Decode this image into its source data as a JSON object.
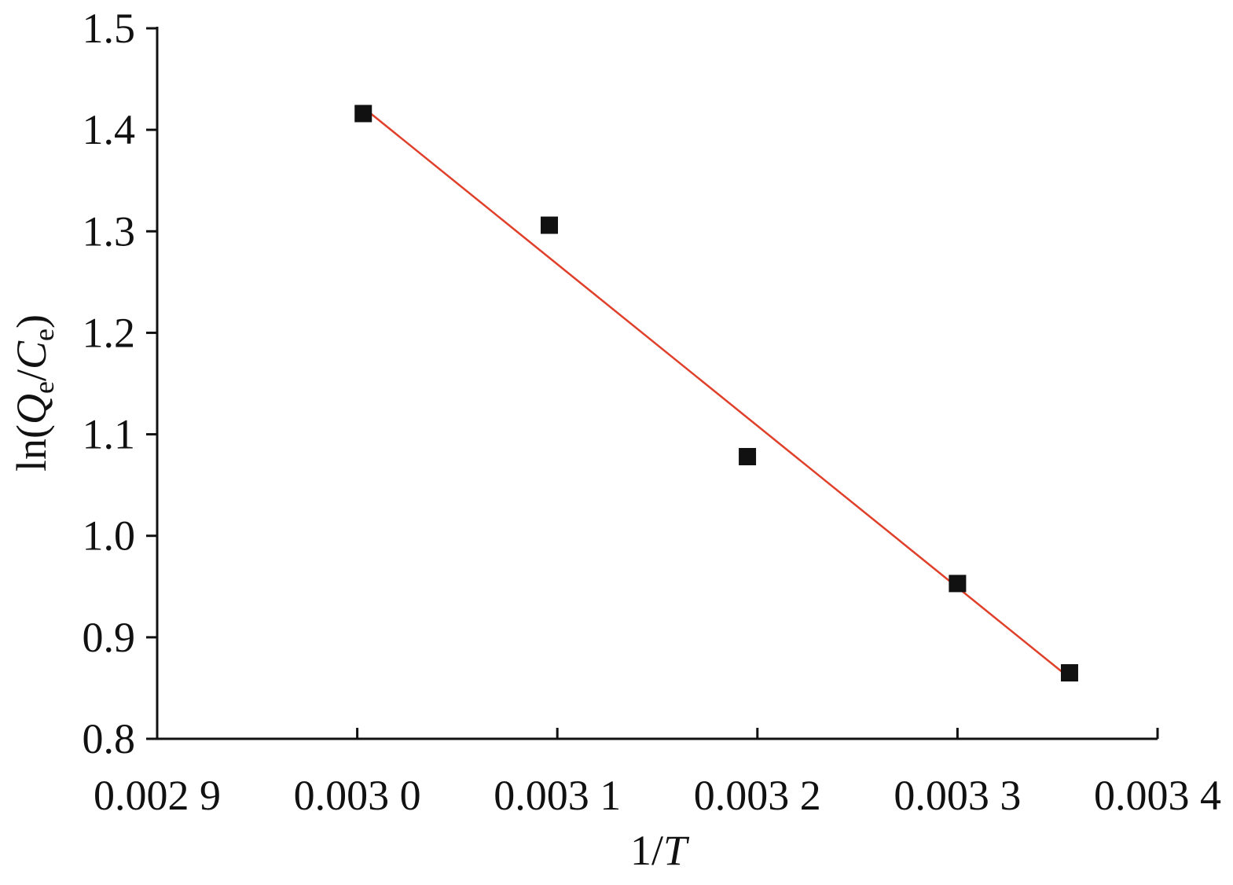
{
  "chart_data": {
    "type": "scatter",
    "x": [
      0.003003,
      0.003096,
      0.003195,
      0.0033,
      0.003356
    ],
    "values": [
      1.416,
      1.306,
      1.078,
      0.953,
      0.865
    ],
    "color": "#111111",
    "marker": "square",
    "fit": {
      "x": [
        0.003003,
        0.003356
      ],
      "values": [
        1.422,
        0.86
      ],
      "color": "#e0402a"
    },
    "xlim": [
      0.0029,
      0.0034
    ],
    "xticks": [
      {
        "value": 0.0029,
        "label": "0.002 9"
      },
      {
        "value": 0.003,
        "label": "0.003 0"
      },
      {
        "value": 0.0031,
        "label": "0.003 1"
      },
      {
        "value": 0.0032,
        "label": "0.003 2"
      },
      {
        "value": 0.0033,
        "label": "0.003 3"
      },
      {
        "value": 0.0034,
        "label": "0.003 4"
      }
    ],
    "ylim": [
      0.8,
      1.5
    ],
    "yticks": [
      0.8,
      0.9,
      {
        "value": 1,
        "label": "1.0"
      },
      1.1,
      1.2,
      1.3,
      1.4,
      1.5
    ],
    "xlabel": [
      "1/",
      "T"
    ],
    "ylabel": [
      "ln(",
      "Q",
      "e",
      "/",
      "C",
      "e",
      ")"
    ]
  }
}
